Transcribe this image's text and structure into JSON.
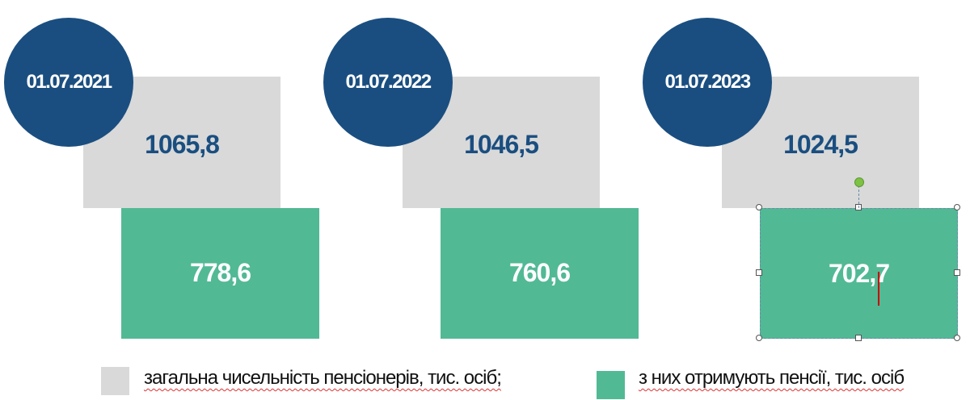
{
  "groups": [
    {
      "date": "01.07.2021",
      "total": "1065,8",
      "receiving": "778,6"
    },
    {
      "date": "01.07.2022",
      "total": "1046,5",
      "receiving": "760,6"
    },
    {
      "date": "01.07.2023",
      "total": "1024,5",
      "receiving": "702,7"
    }
  ],
  "legend": [
    {
      "label": "загальна  чисельність пенсіонерів, тис. осіб;",
      "color": "#d9d9d9"
    },
    {
      "label": "з них отримують пенсії, тис. осіб",
      "color": "#52b995"
    }
  ]
}
